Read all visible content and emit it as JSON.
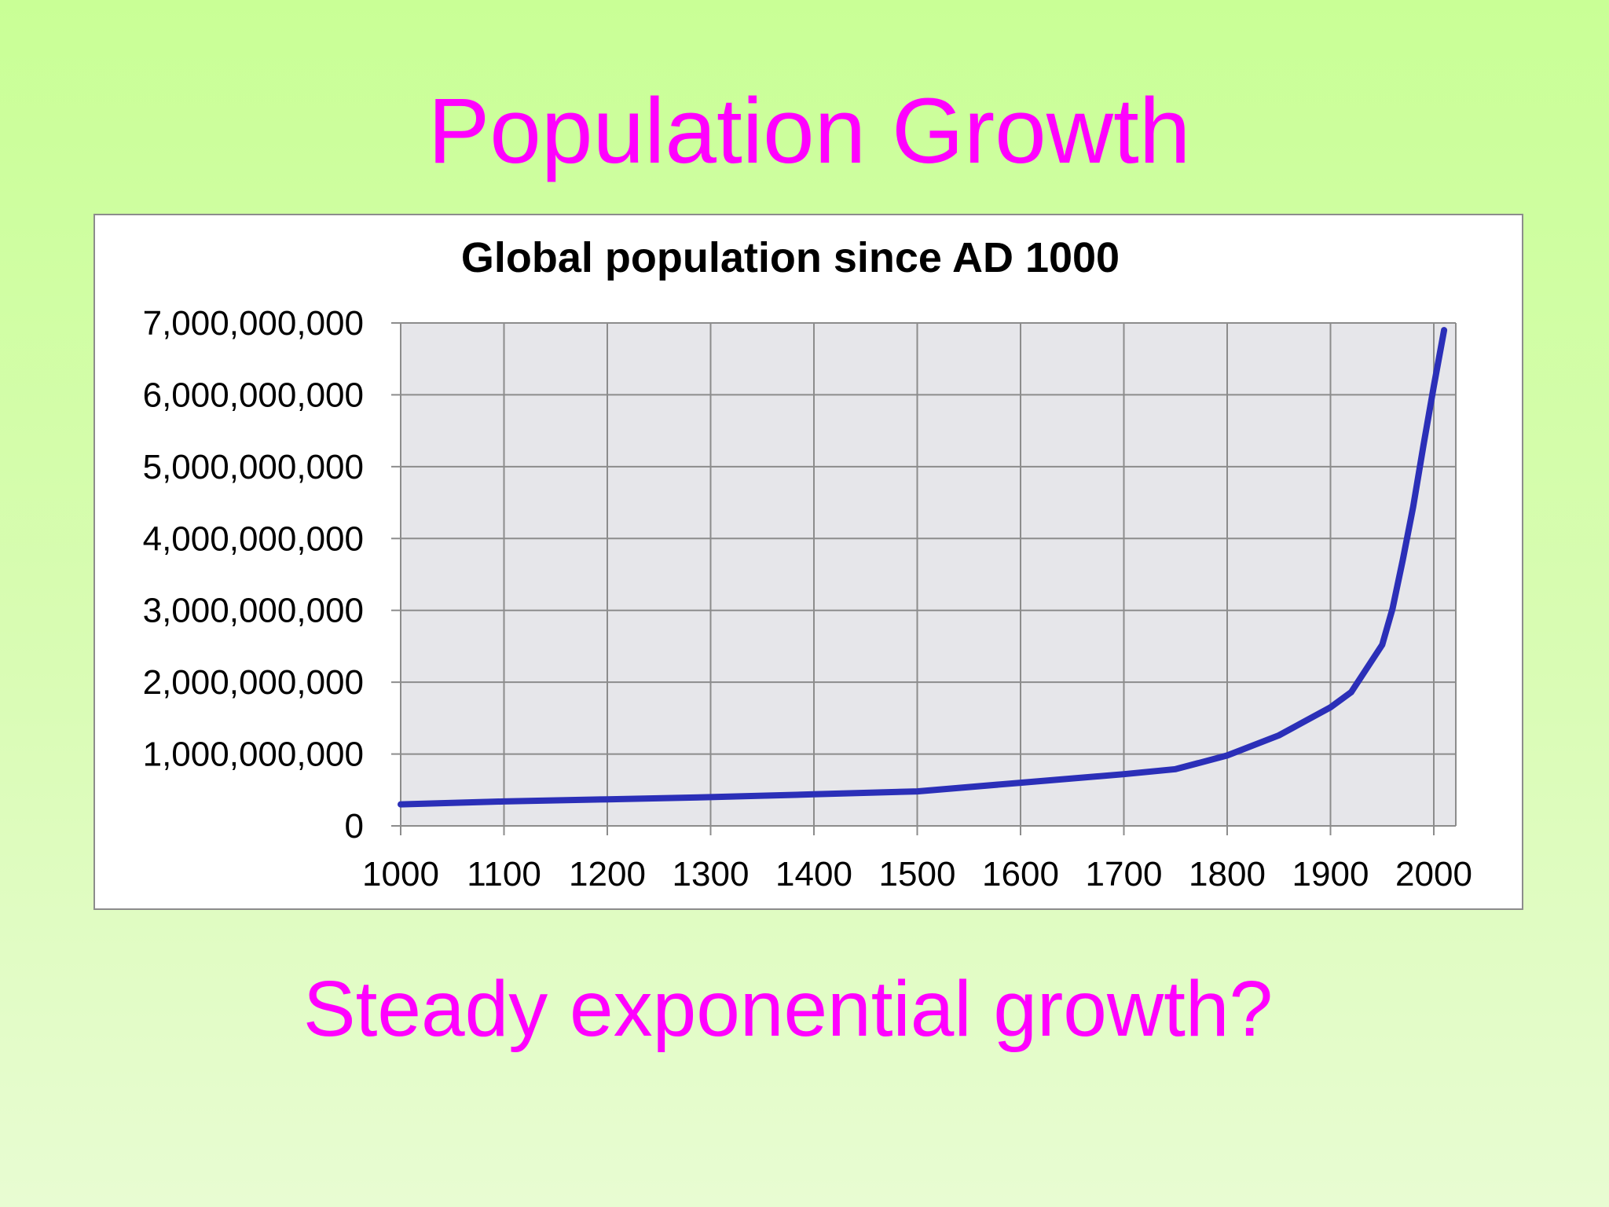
{
  "slide": {
    "title": "Population Growth",
    "question": "Steady exponential growth?"
  },
  "colors": {
    "title_text": "#ff00ff",
    "line": "#2b2fb8",
    "plot_background": "#e6e6ea",
    "grid": "#8c8c8c"
  },
  "chart_data": {
    "type": "line",
    "title": "Global population since AD 1000",
    "xlabel": "",
    "ylabel": "",
    "xlim": [
      1000,
      2020
    ],
    "ylim": [
      0,
      7000000000
    ],
    "x_ticks": [
      1000,
      1100,
      1200,
      1300,
      1400,
      1500,
      1600,
      1700,
      1800,
      1900,
      2000
    ],
    "x_tick_labels": [
      "1000",
      "1100",
      "1200",
      "1300",
      "1400",
      "1500",
      "1600",
      "1700",
      "1800",
      "1900",
      "2000"
    ],
    "y_ticks": [
      0,
      1000000000,
      2000000000,
      3000000000,
      4000000000,
      5000000000,
      6000000000,
      7000000000
    ],
    "y_tick_labels": [
      "0",
      "1,000,000,000",
      "2,000,000,000",
      "3,000,000,000",
      "4,000,000,000",
      "5,000,000,000",
      "6,000,000,000",
      "7,000,000,000"
    ],
    "grid": true,
    "legend": "none",
    "series": [
      {
        "x": [
          1000,
          1100,
          1200,
          1300,
          1400,
          1500,
          1600,
          1700,
          1750,
          1800,
          1850,
          1900,
          1920,
          1950,
          1960,
          1970,
          1980,
          1990,
          2000,
          2010
        ],
        "y": [
          300000000,
          340000000,
          370000000,
          400000000,
          440000000,
          480000000,
          600000000,
          720000000,
          790000000,
          980000000,
          1260000000,
          1650000000,
          1860000000,
          2520000000,
          3020000000,
          3700000000,
          4440000000,
          5300000000,
          6120000000,
          6900000000
        ]
      }
    ]
  }
}
